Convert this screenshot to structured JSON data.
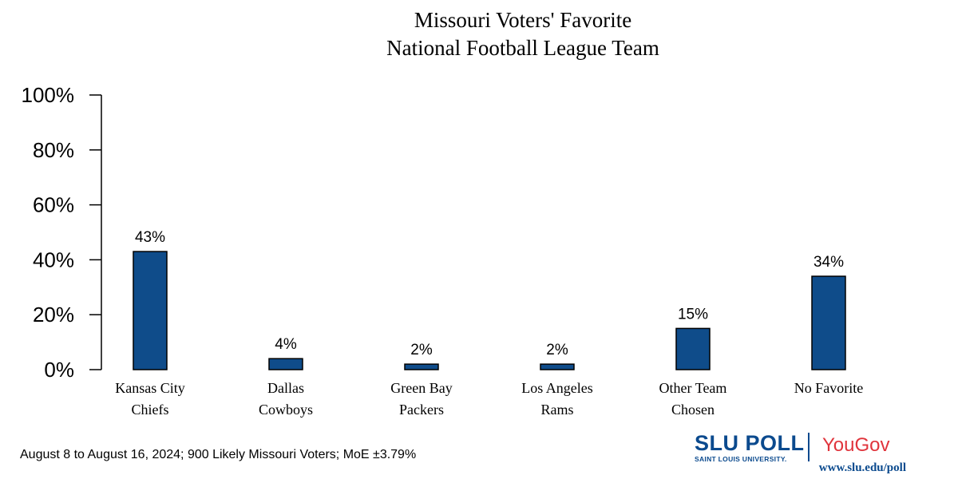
{
  "chart_data": {
    "type": "bar",
    "title": [
      "Missouri Voters' Favorite",
      "National Football League Team"
    ],
    "categories": [
      [
        "Kansas City",
        "Chiefs"
      ],
      [
        "Dallas",
        "Cowboys"
      ],
      [
        "Green Bay",
        "Packers"
      ],
      [
        "Los Angeles",
        "Rams"
      ],
      [
        "Other Team",
        "Chosen"
      ],
      [
        "No Favorite"
      ]
    ],
    "values": [
      43,
      4,
      2,
      2,
      15,
      34
    ],
    "value_labels": [
      "43%",
      "4%",
      "2%",
      "2%",
      "15%",
      "34%"
    ],
    "yticks": [
      "0%",
      "20%",
      "40%",
      "60%",
      "80%",
      "100%"
    ],
    "ylim": [
      0,
      100
    ],
    "bar_color": "#0f4c8a",
    "grid": false,
    "legend": "none"
  },
  "footnote": "August 8 to August 16, 2024; 900 Likely Missouri Voters; MoE ±3.79%",
  "branding": {
    "slu_poll": "SLU POLL",
    "slu_sub": "SAINT LOUIS UNIVERSITY.",
    "yougov": "YouGov",
    "url": "www.slu.edu/poll"
  }
}
